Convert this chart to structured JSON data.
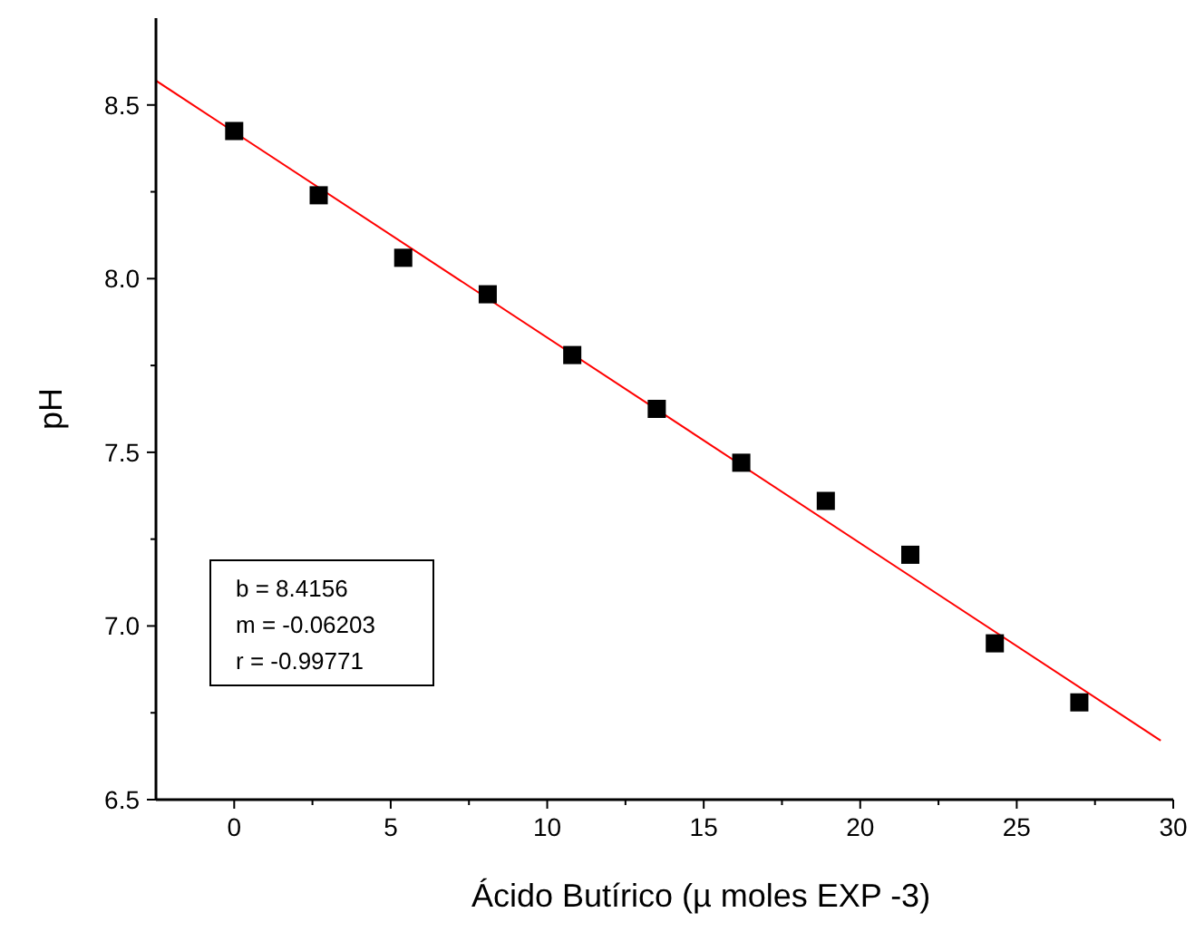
{
  "chart_data": {
    "type": "scatter",
    "xlabel": "Ácido Butírico (µ moles EXP -3)",
    "ylabel": "pH",
    "xlim": [
      -2.5,
      30
    ],
    "ylim": [
      6.5,
      8.75
    ],
    "xticks": [
      0,
      {
        "value": 2.5,
        "label": null
      },
      5,
      {
        "value": 7.5,
        "label": null
      },
      10,
      {
        "value": 12.5,
        "label": null
      },
      15,
      {
        "value": 17.5,
        "label": null
      },
      20,
      {
        "value": 22.5,
        "label": null
      },
      25,
      {
        "value": 27.5,
        "label": null
      },
      30
    ],
    "yticks": [
      6.5,
      {
        "value": 6.75,
        "label": null
      },
      {
        "value": 7,
        "label": "7.0"
      },
      {
        "value": 7.25,
        "label": null
      },
      7.5,
      {
        "value": 7.75,
        "label": null
      },
      {
        "value": 8,
        "label": "8.0"
      },
      {
        "value": 8.25,
        "label": null
      },
      8.5
    ],
    "grid": false,
    "series": [
      {
        "marker": "square",
        "color": "#000000",
        "x": [
          0,
          2.7,
          5.4,
          8.1,
          10.8,
          13.5,
          16.2,
          18.9,
          21.6,
          24.3,
          27
        ],
        "values": [
          8.425,
          8.24,
          8.06,
          7.955,
          7.78,
          7.625,
          7.47,
          7.36,
          7.205,
          6.95,
          6.78
        ]
      },
      {
        "type": "line",
        "color": "#ff0000",
        "line_style": "solid",
        "x": [
          -2.5,
          29.6
        ],
        "values": [
          8.57,
          6.67
        ]
      }
    ],
    "annotations": [
      "b = 8.4156",
      "m = -0.06203",
      "r = -0.99771"
    ]
  }
}
